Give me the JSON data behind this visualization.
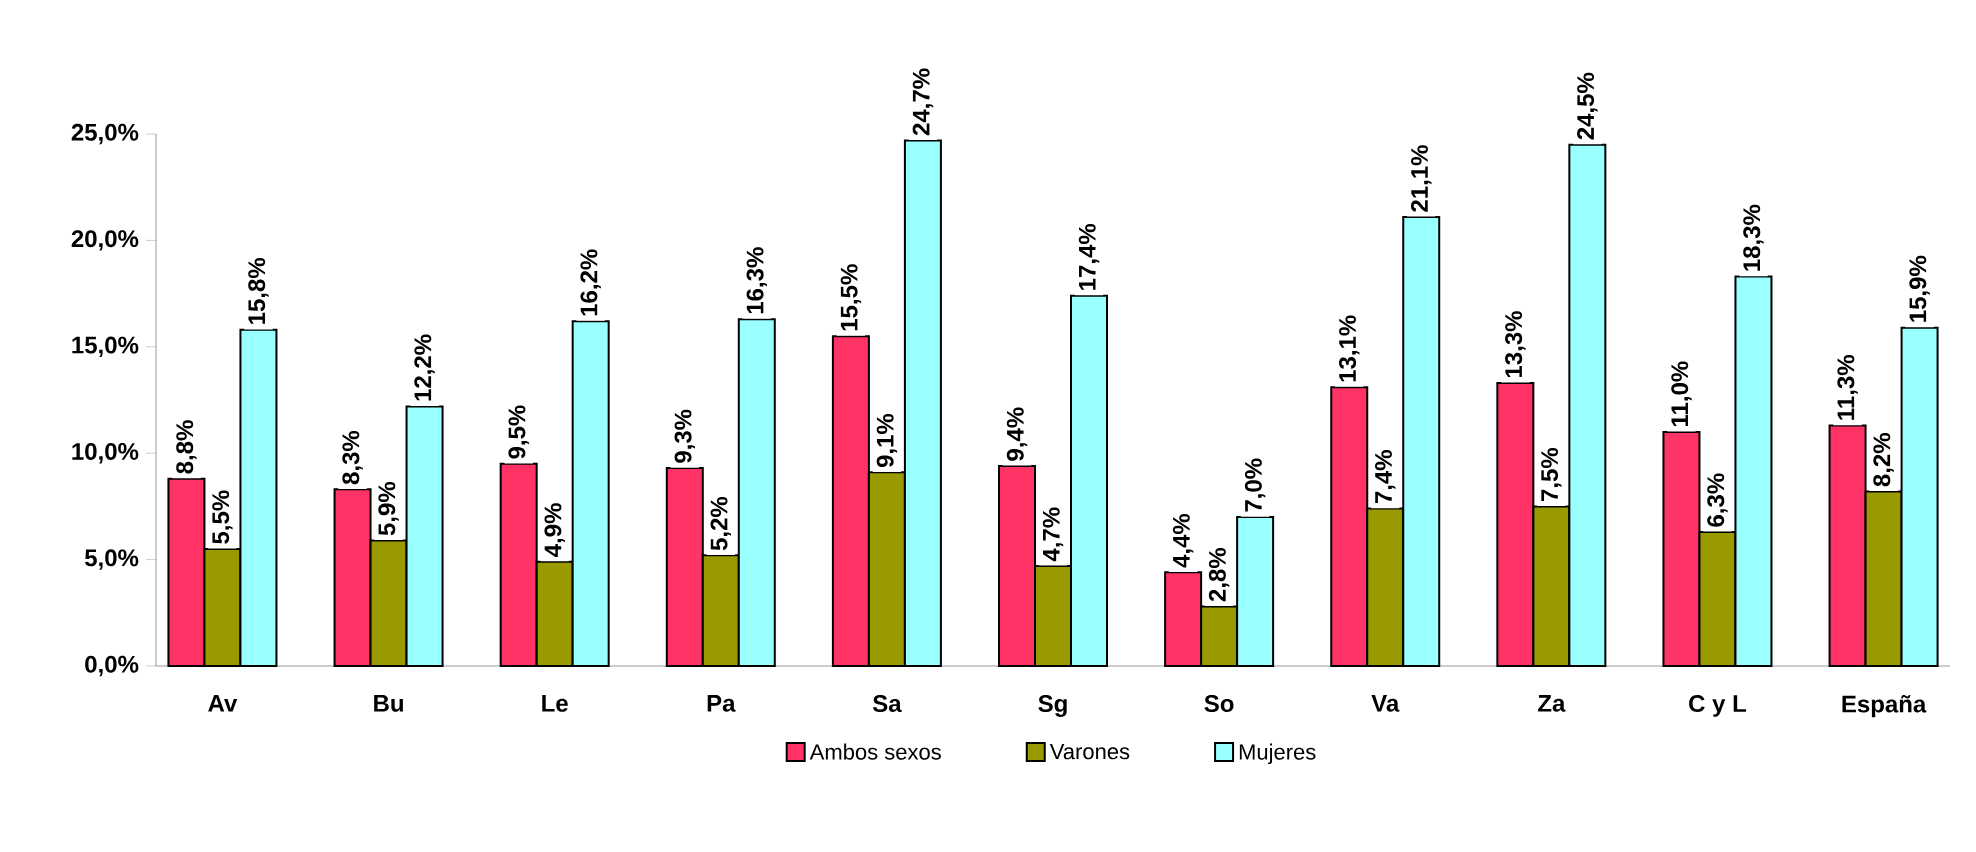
{
  "chart_data": {
    "type": "bar",
    "categories": [
      "Av",
      "Bu",
      "Le",
      "Pa",
      "Sa",
      "Sg",
      "So",
      "Va",
      "Za",
      "C y L",
      "España"
    ],
    "series": [
      {
        "name": "Ambos sexos",
        "color": "#ff3366",
        "values": [
          8.8,
          8.3,
          9.5,
          9.3,
          15.5,
          9.4,
          4.4,
          13.1,
          13.3,
          11.0,
          11.3
        ],
        "value_labels": [
          "8,8%",
          "8,3%",
          "9,5%",
          "9,3%",
          "15,5%",
          "9,4%",
          "4,4%",
          "13,1%",
          "13,3%",
          "11,0%",
          "11,3%"
        ]
      },
      {
        "name": "Varones",
        "color": "#999900",
        "values": [
          5.5,
          5.9,
          4.9,
          5.2,
          9.1,
          4.7,
          2.8,
          7.4,
          7.5,
          6.3,
          8.2
        ],
        "value_labels": [
          "5,5%",
          "5,9%",
          "4,9%",
          "5,2%",
          "9,1%",
          "4,7%",
          "2,8%",
          "7,4%",
          "7,5%",
          "6,3%",
          "8,2%"
        ]
      },
      {
        "name": "Mujeres",
        "color": "#99ffff",
        "values": [
          15.8,
          12.2,
          16.2,
          16.3,
          24.7,
          17.4,
          7.0,
          21.1,
          24.5,
          18.3,
          15.9
        ],
        "value_labels": [
          "15,8%",
          "12,2%",
          "16,2%",
          "16,3%",
          "24,7%",
          "17,4%",
          "7,0%",
          "21,1%",
          "24,5%",
          "18,3%",
          "15,9%"
        ]
      }
    ],
    "ylim": [
      0,
      25
    ],
    "yticks": [
      {
        "value": 0,
        "label": "0,0%"
      },
      {
        "value": 5,
        "label": "5,0%"
      },
      {
        "value": 10,
        "label": "10,0%"
      },
      {
        "value": 15,
        "label": "15,0%"
      },
      {
        "value": 20,
        "label": "20,0%"
      },
      {
        "value": 25,
        "label": "25,0%"
      }
    ],
    "legend": "bottom"
  }
}
